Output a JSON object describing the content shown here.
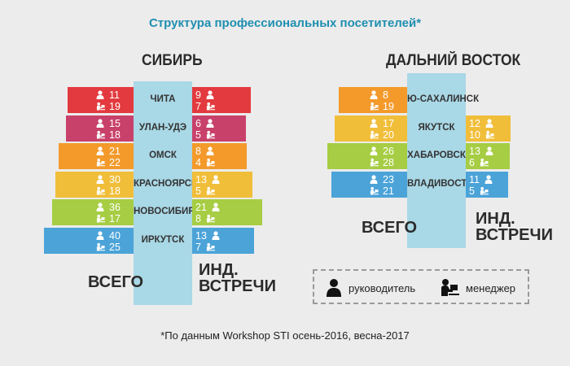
{
  "title": "Структура профессиональных посетителей*",
  "legend": {
    "director": "руководитель",
    "manager": "менеджер"
  },
  "footnote": "*По данным Workshop STI осень-2016, весна-2017",
  "colors": {
    "column": "#a9d8e6",
    "red": "#e23a3e",
    "magenta": "#c8416b",
    "orange": "#f39a2b",
    "yellow": "#f1be3a",
    "green": "#a6cd43",
    "blue": "#4ba3d8"
  },
  "chart_data": [
    {
      "type": "bar",
      "region": "СИБИРЬ",
      "total_label": "ВСЕГО",
      "ind_label": [
        "ИНД.",
        "ВСТРЕЧИ"
      ],
      "rows": [
        {
          "city": "ЧИТА",
          "total": {
            "director": 11,
            "manager": 19
          },
          "meetings": {
            "director": 9,
            "manager": 7
          },
          "color": "#e23a3e"
        },
        {
          "city": "УЛАН-УДЭ",
          "total": {
            "director": 15,
            "manager": 18
          },
          "meetings": {
            "director": 6,
            "manager": 5
          },
          "color": "#c8416b"
        },
        {
          "city": "ОМСК",
          "total": {
            "director": 21,
            "manager": 22
          },
          "meetings": {
            "director": 8,
            "manager": 4
          },
          "color": "#f39a2b"
        },
        {
          "city": "КРАСНОЯРСК",
          "total": {
            "director": 30,
            "manager": 18
          },
          "meetings": {
            "director": 13,
            "manager": 5
          },
          "color": "#f1be3a"
        },
        {
          "city": "НОВОСИБИРСК",
          "total": {
            "director": 36,
            "manager": 17
          },
          "meetings": {
            "director": 21,
            "manager": 8
          },
          "color": "#a6cd43"
        },
        {
          "city": "ИРКУТСК",
          "total": {
            "director": 40,
            "manager": 25
          },
          "meetings": {
            "director": 13,
            "manager": 7
          },
          "color": "#4ba3d8"
        }
      ]
    },
    {
      "type": "bar",
      "region": "ДАЛЬНИЙ ВОСТОК",
      "total_label": "ВСЕГО",
      "ind_label": [
        "ИНД.",
        "ВСТРЕЧИ"
      ],
      "rows": [
        {
          "city": "Ю-САХАЛИНСК",
          "total": {
            "director": 8,
            "manager": 19
          },
          "meetings": null,
          "color": "#f39a2b"
        },
        {
          "city": "ЯКУТСК",
          "total": {
            "director": 17,
            "manager": 20
          },
          "meetings": {
            "director": 12,
            "manager": 10
          },
          "color": "#f1be3a"
        },
        {
          "city": "ХАБАРОВСК",
          "total": {
            "director": 26,
            "manager": 28
          },
          "meetings": {
            "director": 13,
            "manager": 6
          },
          "color": "#a6cd43"
        },
        {
          "city": "ВЛАДИВОСТОК",
          "total": {
            "director": 23,
            "manager": 21
          },
          "meetings": {
            "director": 11,
            "manager": 5
          },
          "color": "#4ba3d8"
        }
      ]
    }
  ]
}
